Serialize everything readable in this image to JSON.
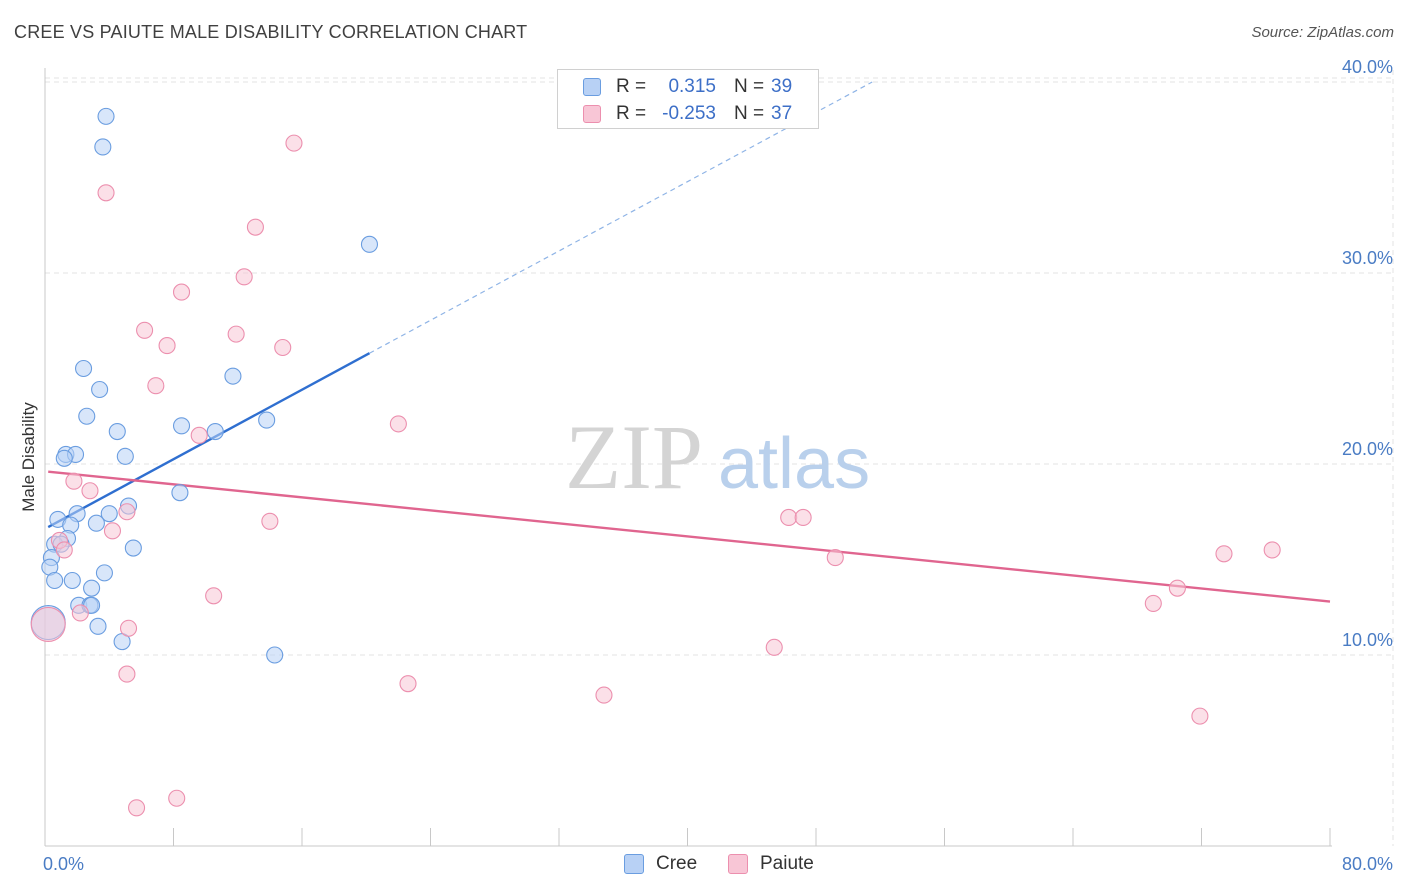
{
  "chart_data": {
    "type": "scatter",
    "title": "CREE VS PAIUTE MALE DISABILITY CORRELATION CHART",
    "source": "Source: ZipAtlas.com",
    "xlabel": "",
    "ylabel": "Male Disability",
    "xlim": [
      0,
      80
    ],
    "ylim": [
      0,
      41.5
    ],
    "x_tick_labels": [
      "0.0%",
      "80.0%"
    ],
    "y_ticks": [
      10,
      20,
      30,
      40
    ],
    "y_tick_labels": [
      "10.0%",
      "20.0%",
      "30.0%",
      "40.0%"
    ],
    "grid": true,
    "watermark": "ZIPatlas",
    "legend": {
      "position": "top-center",
      "entries": [
        {
          "r_label": "R =",
          "r_value": "0.315",
          "n_label": "N =",
          "n_value": "39"
        },
        {
          "r_label": "R =",
          "r_value": "-0.253",
          "n_label": "N =",
          "n_value": "37"
        }
      ]
    },
    "series": [
      {
        "name": "Cree",
        "fill": "#b8d1f5",
        "stroke": "#6a9de0",
        "line_color": "#2f6fd0",
        "trend": {
          "x_start": 0.2,
          "y_start": 16.7,
          "x_solid_end": 20.2,
          "y_solid_end": 25.8,
          "x_dash_end": 51.5,
          "y_dash_end": 40.0
        },
        "points": [
          {
            "x": 3.8,
            "y": 38.2
          },
          {
            "x": 3.6,
            "y": 36.6
          },
          {
            "x": 20.2,
            "y": 31.5
          },
          {
            "x": 2.4,
            "y": 25.0
          },
          {
            "x": 11.7,
            "y": 24.6
          },
          {
            "x": 3.4,
            "y": 23.9
          },
          {
            "x": 2.6,
            "y": 22.5
          },
          {
            "x": 13.8,
            "y": 22.3
          },
          {
            "x": 8.5,
            "y": 22.0
          },
          {
            "x": 4.5,
            "y": 21.7
          },
          {
            "x": 10.6,
            "y": 21.7
          },
          {
            "x": 1.3,
            "y": 20.5
          },
          {
            "x": 1.9,
            "y": 20.5
          },
          {
            "x": 1.2,
            "y": 20.3
          },
          {
            "x": 5.0,
            "y": 20.4
          },
          {
            "x": 8.4,
            "y": 18.5
          },
          {
            "x": 5.2,
            "y": 17.8
          },
          {
            "x": 4.0,
            "y": 17.4
          },
          {
            "x": 2.0,
            "y": 17.4
          },
          {
            "x": 0.8,
            "y": 17.1
          },
          {
            "x": 1.6,
            "y": 16.8
          },
          {
            "x": 3.2,
            "y": 16.9
          },
          {
            "x": 1.4,
            "y": 16.1
          },
          {
            "x": 0.6,
            "y": 15.8
          },
          {
            "x": 1.0,
            "y": 15.8
          },
          {
            "x": 5.5,
            "y": 15.6
          },
          {
            "x": 0.4,
            "y": 15.1
          },
          {
            "x": 0.3,
            "y": 14.6
          },
          {
            "x": 3.7,
            "y": 14.3
          },
          {
            "x": 0.6,
            "y": 13.9
          },
          {
            "x": 1.7,
            "y": 13.9
          },
          {
            "x": 2.9,
            "y": 13.5
          },
          {
            "x": 2.1,
            "y": 12.6
          },
          {
            "x": 2.8,
            "y": 12.6
          },
          {
            "x": 2.9,
            "y": 12.6
          },
          {
            "x": 0.2,
            "y": 11.7,
            "big": true
          },
          {
            "x": 3.3,
            "y": 11.5
          },
          {
            "x": 4.8,
            "y": 10.7
          },
          {
            "x": 14.3,
            "y": 10.0
          }
        ]
      },
      {
        "name": "Paiute",
        "fill": "#f8c6d6",
        "stroke": "#ec8fae",
        "line_color": "#e0658f",
        "trend": {
          "x_start": 0.2,
          "y_start": 19.6,
          "x_end": 80.0,
          "y_end": 12.8
        },
        "points": [
          {
            "x": 15.5,
            "y": 36.8
          },
          {
            "x": 3.8,
            "y": 34.2
          },
          {
            "x": 13.1,
            "y": 32.4
          },
          {
            "x": 12.4,
            "y": 29.8
          },
          {
            "x": 8.5,
            "y": 29.0
          },
          {
            "x": 6.2,
            "y": 27.0
          },
          {
            "x": 11.9,
            "y": 26.8
          },
          {
            "x": 7.6,
            "y": 26.2
          },
          {
            "x": 14.8,
            "y": 26.1
          },
          {
            "x": 6.9,
            "y": 24.1
          },
          {
            "x": 22.0,
            "y": 22.1
          },
          {
            "x": 9.6,
            "y": 21.5
          },
          {
            "x": 1.8,
            "y": 19.1
          },
          {
            "x": 2.8,
            "y": 18.6
          },
          {
            "x": 5.1,
            "y": 17.5
          },
          {
            "x": 46.3,
            "y": 17.2
          },
          {
            "x": 47.2,
            "y": 17.2
          },
          {
            "x": 14.0,
            "y": 17.0
          },
          {
            "x": 4.2,
            "y": 16.5
          },
          {
            "x": 0.9,
            "y": 16.0
          },
          {
            "x": 1.2,
            "y": 15.5
          },
          {
            "x": 76.4,
            "y": 15.5
          },
          {
            "x": 73.4,
            "y": 15.3
          },
          {
            "x": 49.2,
            "y": 15.1
          },
          {
            "x": 70.5,
            "y": 13.5
          },
          {
            "x": 10.5,
            "y": 13.1
          },
          {
            "x": 69.0,
            "y": 12.7
          },
          {
            "x": 2.2,
            "y": 12.2
          },
          {
            "x": 5.2,
            "y": 11.4
          },
          {
            "x": 0.2,
            "y": 11.6,
            "big": true
          },
          {
            "x": 45.4,
            "y": 10.4
          },
          {
            "x": 5.1,
            "y": 9.0
          },
          {
            "x": 22.6,
            "y": 8.5
          },
          {
            "x": 34.8,
            "y": 7.9
          },
          {
            "x": 71.9,
            "y": 6.8
          },
          {
            "x": 8.2,
            "y": 2.5
          },
          {
            "x": 5.7,
            "y": 2.0
          }
        ]
      }
    ]
  }
}
